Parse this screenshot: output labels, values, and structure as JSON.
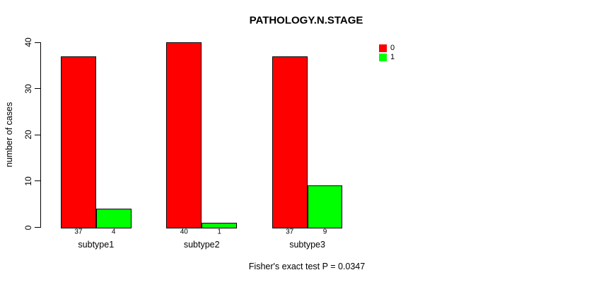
{
  "title": "PATHOLOGY.N.STAGE",
  "footer": "Fisher's exact test P = 0.0347",
  "y_axis": {
    "label": "number of cases",
    "ticks": [
      0,
      10,
      20,
      30,
      40
    ]
  },
  "legend": {
    "items": [
      {
        "label": "0",
        "color": "#ff0000"
      },
      {
        "label": "1",
        "color": "#00ff00"
      }
    ]
  },
  "chart_data": {
    "type": "bar",
    "title": "PATHOLOGY.N.STAGE",
    "categories": [
      "subtype1",
      "subtype2",
      "subtype3"
    ],
    "series": [
      {
        "name": "0",
        "color": "#ff0000",
        "values": [
          37,
          40,
          37
        ]
      },
      {
        "name": "1",
        "color": "#00ff00",
        "values": [
          4,
          1,
          9
        ]
      }
    ],
    "xlabel": "",
    "ylabel": "number of cases",
    "ylim": [
      0,
      40
    ],
    "yticks": [
      0,
      10,
      20,
      30,
      40
    ],
    "grid": false,
    "legend_position": "top-right",
    "bar_value_labels": true,
    "annotation": "Fisher's exact test P = 0.0347"
  }
}
